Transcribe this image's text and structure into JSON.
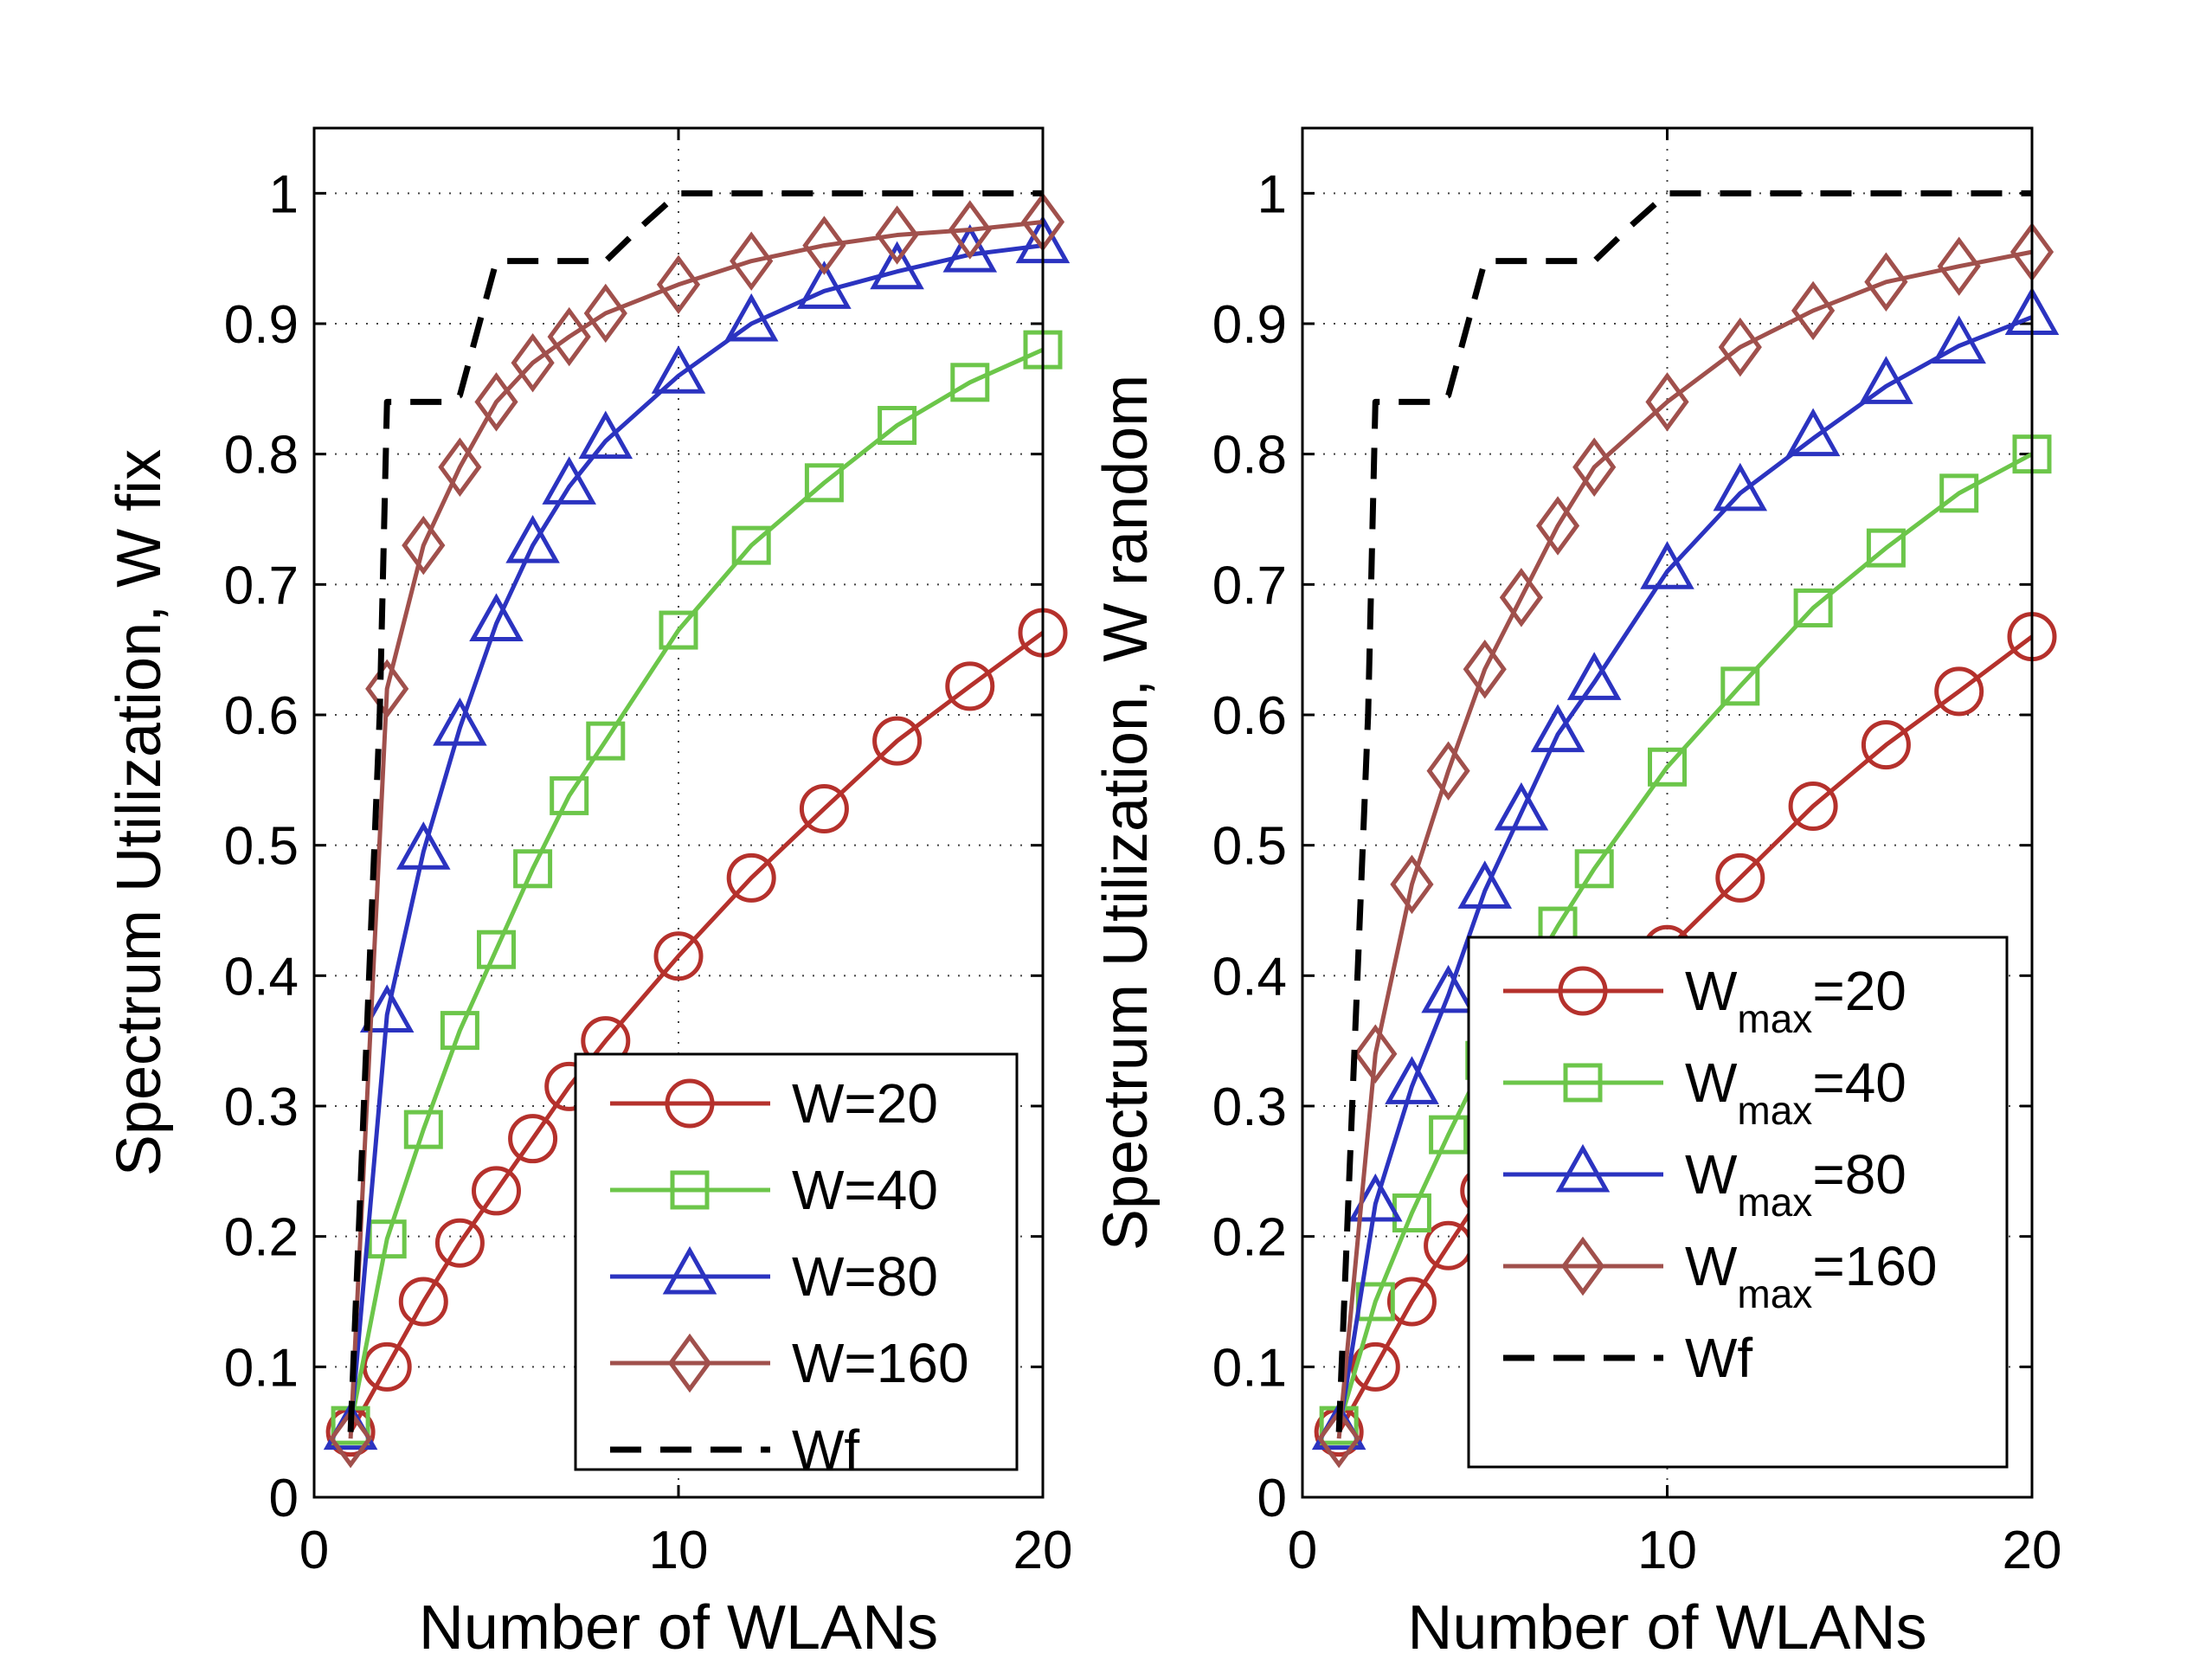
{
  "chart_data": [
    {
      "type": "line",
      "xlabel": "Number of WLANs",
      "ylabel": "Spectrum Utilization, W fix",
      "xlim": [
        0,
        20
      ],
      "ylim": [
        0,
        1.05
      ],
      "xticks": [
        "0",
        "10",
        "20"
      ],
      "yticks": [
        "0",
        "0.1",
        "0.2",
        "0.3",
        "0.4",
        "0.5",
        "0.6",
        "0.7",
        "0.8",
        "0.9",
        "1"
      ],
      "grid": true,
      "legend_position": "bottom-right",
      "series": [
        {
          "name": "W=20",
          "legend_main": "W=20",
          "legend_sub": "",
          "legend_tail": "",
          "marker": "circle",
          "color": "#b5312c",
          "dash": false,
          "x": [
            1,
            2,
            3,
            4,
            5,
            6,
            7,
            8,
            10,
            12,
            14,
            16,
            18,
            20
          ],
          "y": [
            0.05,
            0.1,
            0.15,
            0.195,
            0.235,
            0.275,
            0.315,
            0.35,
            0.415,
            0.475,
            0.528,
            0.58,
            0.622,
            0.663
          ]
        },
        {
          "name": "W=40",
          "legend_main": "W=40",
          "legend_sub": "",
          "legend_tail": "",
          "marker": "square",
          "color": "#6cc64a",
          "dash": false,
          "x": [
            1,
            2,
            3,
            4,
            5,
            6,
            7,
            8,
            10,
            12,
            14,
            16,
            18,
            20
          ],
          "y": [
            0.055,
            0.198,
            0.282,
            0.358,
            0.42,
            0.482,
            0.538,
            0.58,
            0.665,
            0.73,
            0.778,
            0.822,
            0.855,
            0.88
          ]
        },
        {
          "name": "W=80",
          "legend_main": "W=80",
          "legend_sub": "",
          "legend_tail": "",
          "marker": "triangle",
          "color": "#2b33c0",
          "dash": false,
          "x": [
            1,
            2,
            3,
            4,
            5,
            6,
            7,
            8,
            10,
            12,
            14,
            16,
            18,
            20
          ],
          "y": [
            0.05,
            0.37,
            0.495,
            0.59,
            0.67,
            0.73,
            0.775,
            0.81,
            0.86,
            0.9,
            0.925,
            0.94,
            0.953,
            0.96
          ]
        },
        {
          "name": "W=160",
          "legend_main": "W=160",
          "legend_sub": "",
          "legend_tail": "",
          "marker": "diamond",
          "color": "#a0504c",
          "dash": false,
          "x": [
            1,
            2,
            3,
            4,
            5,
            6,
            7,
            8,
            10,
            12,
            14,
            16,
            18,
            20
          ],
          "y": [
            0.045,
            0.62,
            0.73,
            0.79,
            0.84,
            0.87,
            0.89,
            0.908,
            0.93,
            0.948,
            0.96,
            0.968,
            0.972,
            0.978
          ]
        },
        {
          "name": "Wf",
          "legend_main": "Wf",
          "legend_sub": "",
          "legend_tail": "",
          "marker": "none",
          "color": "#000000",
          "dash": true,
          "x": [
            1,
            1.8,
            2,
            3.5,
            4,
            5,
            7,
            8,
            9,
            10,
            20
          ],
          "y": [
            0.05,
            0.6,
            0.84,
            0.84,
            0.845,
            0.948,
            0.948,
            0.948,
            0.975,
            1.0,
            1.0
          ]
        }
      ]
    },
    {
      "type": "line",
      "xlabel": "Number of WLANs",
      "ylabel": "Spectrum Utilization, W random",
      "xlim": [
        0,
        20
      ],
      "ylim": [
        0,
        1.05
      ],
      "xticks": [
        "0",
        "10",
        "20"
      ],
      "yticks": [
        "0",
        "0.1",
        "0.2",
        "0.3",
        "0.4",
        "0.5",
        "0.6",
        "0.7",
        "0.8",
        "0.9",
        "1"
      ],
      "grid": true,
      "legend_position": "bottom-right",
      "series": [
        {
          "name": "Wmax=20",
          "legend_main": "W",
          "legend_sub": "max",
          "legend_tail": "=20",
          "marker": "circle",
          "color": "#b5312c",
          "dash": false,
          "x": [
            1,
            2,
            3,
            4,
            5,
            6,
            7,
            8,
            10,
            12,
            14,
            16,
            18,
            20
          ],
          "y": [
            0.05,
            0.1,
            0.15,
            0.193,
            0.235,
            0.275,
            0.315,
            0.355,
            0.42,
            0.475,
            0.53,
            0.577,
            0.618,
            0.66
          ]
        },
        {
          "name": "Wmax=40",
          "legend_main": "W",
          "legend_sub": "max",
          "legend_tail": "=40",
          "marker": "square",
          "color": "#6cc64a",
          "dash": false,
          "x": [
            1,
            2,
            3,
            4,
            5,
            6,
            7,
            8,
            10,
            12,
            14,
            16,
            18,
            20
          ],
          "y": [
            0.055,
            0.15,
            0.218,
            0.278,
            0.335,
            0.39,
            0.438,
            0.482,
            0.56,
            0.622,
            0.682,
            0.728,
            0.77,
            0.8
          ]
        },
        {
          "name": "Wmax=80",
          "legend_main": "W",
          "legend_sub": "max",
          "legend_tail": "=80",
          "marker": "triangle",
          "color": "#2b33c0",
          "dash": false,
          "x": [
            1,
            2,
            3,
            4,
            5,
            6,
            7,
            8,
            10,
            12,
            14,
            16,
            18,
            20
          ],
          "y": [
            0.05,
            0.225,
            0.315,
            0.385,
            0.465,
            0.525,
            0.585,
            0.625,
            0.71,
            0.77,
            0.812,
            0.852,
            0.883,
            0.905
          ]
        },
        {
          "name": "Wmax=160",
          "legend_main": "W",
          "legend_sub": "max",
          "legend_tail": "=160",
          "marker": "diamond",
          "color": "#a0504c",
          "dash": false,
          "x": [
            1,
            2,
            3,
            4,
            5,
            6,
            7,
            8,
            10,
            12,
            14,
            16,
            18,
            20
          ],
          "y": [
            0.045,
            0.34,
            0.47,
            0.557,
            0.635,
            0.69,
            0.745,
            0.79,
            0.84,
            0.882,
            0.91,
            0.932,
            0.944,
            0.955
          ]
        },
        {
          "name": "Wf",
          "legend_main": "Wf",
          "legend_sub": "",
          "legend_tail": "",
          "marker": "none",
          "color": "#000000",
          "dash": true,
          "x": [
            1,
            1.8,
            2,
            3.5,
            4,
            5,
            7,
            8,
            9,
            10,
            20
          ],
          "y": [
            0.05,
            0.6,
            0.84,
            0.84,
            0.845,
            0.948,
            0.948,
            0.948,
            0.975,
            1.0,
            1.0
          ]
        }
      ]
    }
  ]
}
